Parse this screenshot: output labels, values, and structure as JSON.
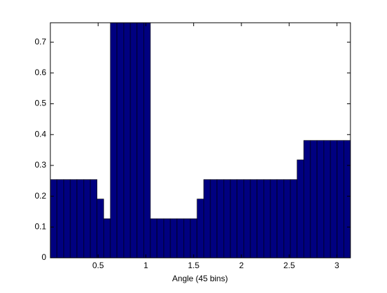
{
  "chart_data": {
    "type": "histogram",
    "x_label": "Angle (45 bins)",
    "bins": [
      0,
      0.0698,
      0.1396,
      0.2094,
      0.2793,
      0.3491,
      0.4189,
      0.4887,
      0.5585,
      0.6283,
      0.6981,
      0.7679,
      0.8378,
      0.9076,
      0.9774,
      1.0472,
      1.117,
      1.1868,
      1.2566,
      1.3265,
      1.3963,
      1.4661,
      1.5359,
      1.6057,
      1.6755,
      1.7453,
      1.8151,
      1.885,
      1.9548,
      2.0246,
      2.0944,
      2.1642,
      2.234,
      2.3038,
      2.3736,
      2.4435,
      2.5133,
      2.5831,
      2.6529,
      2.7227,
      2.7925,
      2.8623,
      2.9322,
      3.002,
      3.0718,
      3.1416
    ],
    "values": [
      0.254,
      0.254,
      0.254,
      0.254,
      0.254,
      0.254,
      0.254,
      0.191,
      0.127,
      0.763,
      0.763,
      0.763,
      0.763,
      0.763,
      0.763,
      0.127,
      0.127,
      0.127,
      0.127,
      0.127,
      0.127,
      0.127,
      0.191,
      0.254,
      0.254,
      0.254,
      0.254,
      0.254,
      0.254,
      0.254,
      0.254,
      0.254,
      0.254,
      0.254,
      0.254,
      0.254,
      0.254,
      0.318,
      0.381,
      0.381,
      0.381,
      0.381,
      0.381,
      0.381,
      0.381
    ],
    "color": "#000080",
    "edge_color": "#000000",
    "xlim": [
      0,
      3.1416
    ],
    "ylim": [
      0,
      0.763
    ],
    "xticks": [
      0.5,
      1,
      1.5,
      2,
      2.5,
      3
    ],
    "yticks": [
      0,
      0.1,
      0.2,
      0.3,
      0.4,
      0.5,
      0.6,
      0.7
    ]
  }
}
